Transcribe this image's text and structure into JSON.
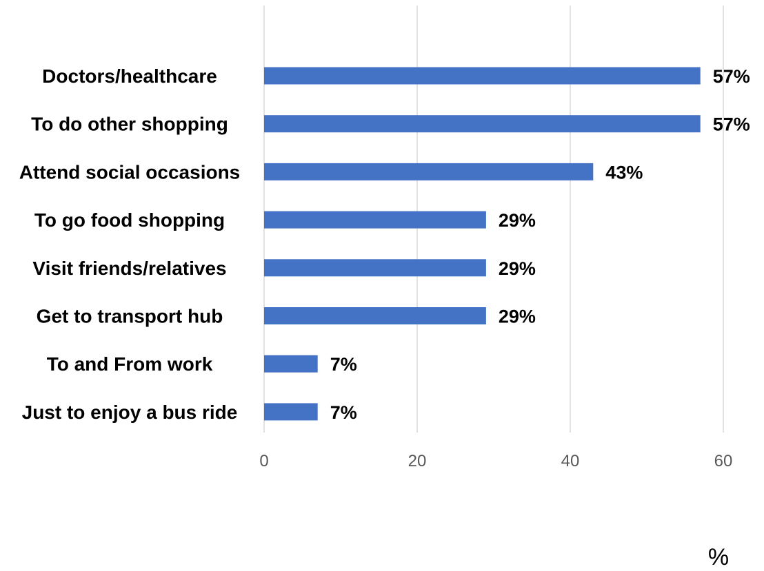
{
  "chart_data": {
    "type": "bar",
    "orientation": "horizontal",
    "title": "",
    "xlabel": "%",
    "ylabel": "",
    "categories": [
      "Doctors/healthcare",
      "To do other shopping",
      "Attend social occasions",
      "To go food shopping",
      "Visit friends/relatives",
      "Get to transport hub",
      "To and From work",
      "Just to enjoy a bus ride"
    ],
    "values": [
      57,
      57,
      43,
      29,
      29,
      29,
      7,
      7
    ],
    "value_labels": [
      "57%",
      "57%",
      "43%",
      "29%",
      "29%",
      "29%",
      "7%",
      "7%"
    ],
    "xlim": [
      0,
      60
    ],
    "x_ticks": [
      "0",
      "20",
      "40",
      "60"
    ],
    "grid": "vertical",
    "legend": "none",
    "bar_color": "#4472C4",
    "grid_color": "#D9D9D9"
  }
}
